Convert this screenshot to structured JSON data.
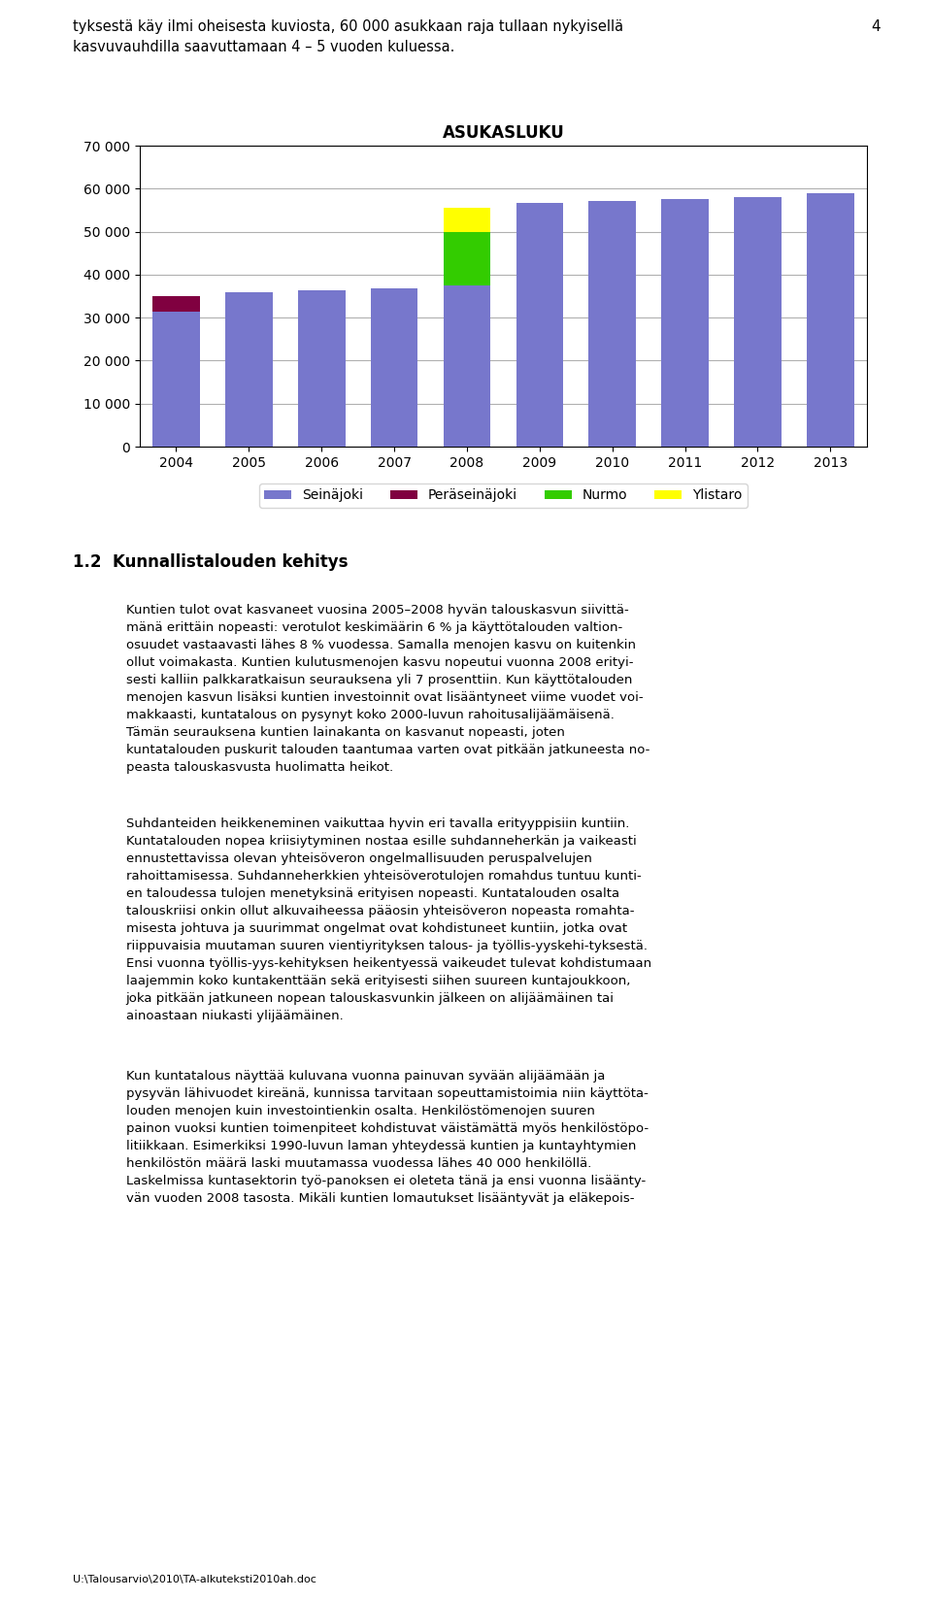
{
  "chart_data": {
    "type": "bar",
    "title": "ASUKASLUKU",
    "stacked": true,
    "grid": true,
    "legend": "upper center",
    "categories": [
      "2004",
      "2005",
      "2006",
      "2007",
      "2008",
      "2009",
      "2010",
      "2011",
      "2012",
      "2013"
    ],
    "series": [
      {
        "name": "Seinäjoki",
        "color": "#7777cc",
        "values": [
          31500,
          35800,
          36300,
          36700,
          37500,
          56600,
          57100,
          57500,
          58000,
          59000
        ]
      },
      {
        "name": "Peräseinäjoki",
        "color": "#800040",
        "values": [
          3500,
          0,
          0,
          0,
          0,
          0,
          0,
          0,
          0,
          0
        ]
      },
      {
        "name": "Nurmo",
        "color": "#33cc00",
        "values": [
          0,
          0,
          0,
          0,
          12500,
          0,
          0,
          0,
          0,
          0
        ]
      },
      {
        "name": "Ylistaro",
        "color": "#ffff00",
        "values": [
          0,
          0,
          0,
          0,
          5500,
          0,
          0,
          0,
          0,
          0
        ]
      }
    ],
    "ylim": [
      0,
      70000
    ],
    "yticks": [
      0,
      {
        "value": 10000,
        "label": "10 000"
      },
      {
        "value": 20000,
        "label": "20 000"
      },
      {
        "value": 30000,
        "label": "30 000"
      },
      {
        "value": 40000,
        "label": "40 000"
      },
      {
        "value": 50000,
        "label": "50 000"
      },
      {
        "value": 60000,
        "label": "60 000"
      },
      {
        "value": 70000,
        "label": "70 000"
      }
    ],
    "annotations": [
      "4",
      "tyksestä käy ilmi oheisesta kuviosta, 60 000 asukkaan raja tullaan nykyisellä\nkasvuvauhdilla saavuttamaan 4 – 5 vuoden kuluessa.",
      "1.2  Kunnallistalouden kehitys",
      "Kuntien tulot ovat kasvaneet vuosina 2005–2008 hyvän talouskasvun siivittä-\nmänä erittäin nopeasti: verotulot keskimäärin 6 % ja käyttötalouden valtion-\nosuudet vastaavasti lähes 8 % vuodessa. Samalla menojen kasvu on kuitenkin\nollut voimakasta. Kuntien kulutusmenojen kasvu nopeutui vuonna 2008 erityi-\nsesti kalliin palkkaratkaisun seurauksena yli 7 prosenttiin. Kun käyttötalouden\nmenojen kasvun lisäksi kuntien investoinnit ovat lisääntyneet viime vuodet voi-\nmakkaasti, kuntatalous on pysynyt koko 2000-luvun rahoitusalijäämäisenä.\nTämän seurauksena kuntien lainakanta on kasvanut nopeasti, joten\nkuntatalouden puskurit talouden taantumaa varten ovat pitkään jatkuneesta no-\npeasta talouskasvusta huolimatta heikot.",
      "Suhdanteiden heikkeneminen vaikuttaa hyvin eri tavalla erityyppisiin kuntiin.\nKuntatalouden nopea kriisiytyminen nostaa esille suhdanneherkän ja vaikeasti\nennustettavissa olevan yhteisöveron ongelmallisuuden peruspalvelujen\nrahoittamisessa. Suhdanneherkkien yhteisöverotulojen romahdus tuntuu kunti-\nen taloudessa tulojen menetyksinä erityisen nopeasti. Kuntatalouden osalta\ntalouskriisi onkin ollut alkuvaiheessa pääosin yhteisöveron nopeasta romahtа-\nmisesta johtuva ja suurimmat ongelmat ovat kohdistuneet kuntiin, jotka ovat\nriippuvaisia muutaman suuren vientiyrityksen talous- ja työllis­yyskehi­tyksestä.\nEnsi vuonna työllis­yys­kehityksen heikentyessä vaikeudet tulevat kohdistumaan\nlaajemmin koko kuntakenttään sekä erityisesti siihen suureen kuntajoukkoon,\njoka pitkään jatkuneen nopean talouskasvunkin jälkeen on alijäämäinen tai\nainoastaan niukasti ylijäämäinen.",
      "Kun kuntatalous näyttää kuluvana vuonna painuvan syvään alijäämään ja\npysyvän lähivuodet kireänä, kunnissa tarvitaan sopeuttamistoimia niin käyttöta-\nlouden menojen kuin investointienkin osalta. Henkilöstömenojen suuren\npainon vuoksi kuntien toimenpiteet kohdistuvat väistämättä myös henkilöstöpo-\nlitiikkaan. Esimerkiksi 1990-luvun laman yhteydessä kuntien ja kuntayhtymien\nhenkilöstön määrä laski muutamassa vuodessa lähes 40 000 henkilöllä.\nLaskelmissa kuntasektorin työ­panoksen ei oleteta tänä ja ensi vuonna lisäänty-\nvän vuoden 2008 tasosta. Mikäli kuntien lomautukset lisääntyvät ja eläkepois-",
      "U:\\Talousarvio\\2010\\TA-alkuteksti2010ah.doc"
    ]
  }
}
